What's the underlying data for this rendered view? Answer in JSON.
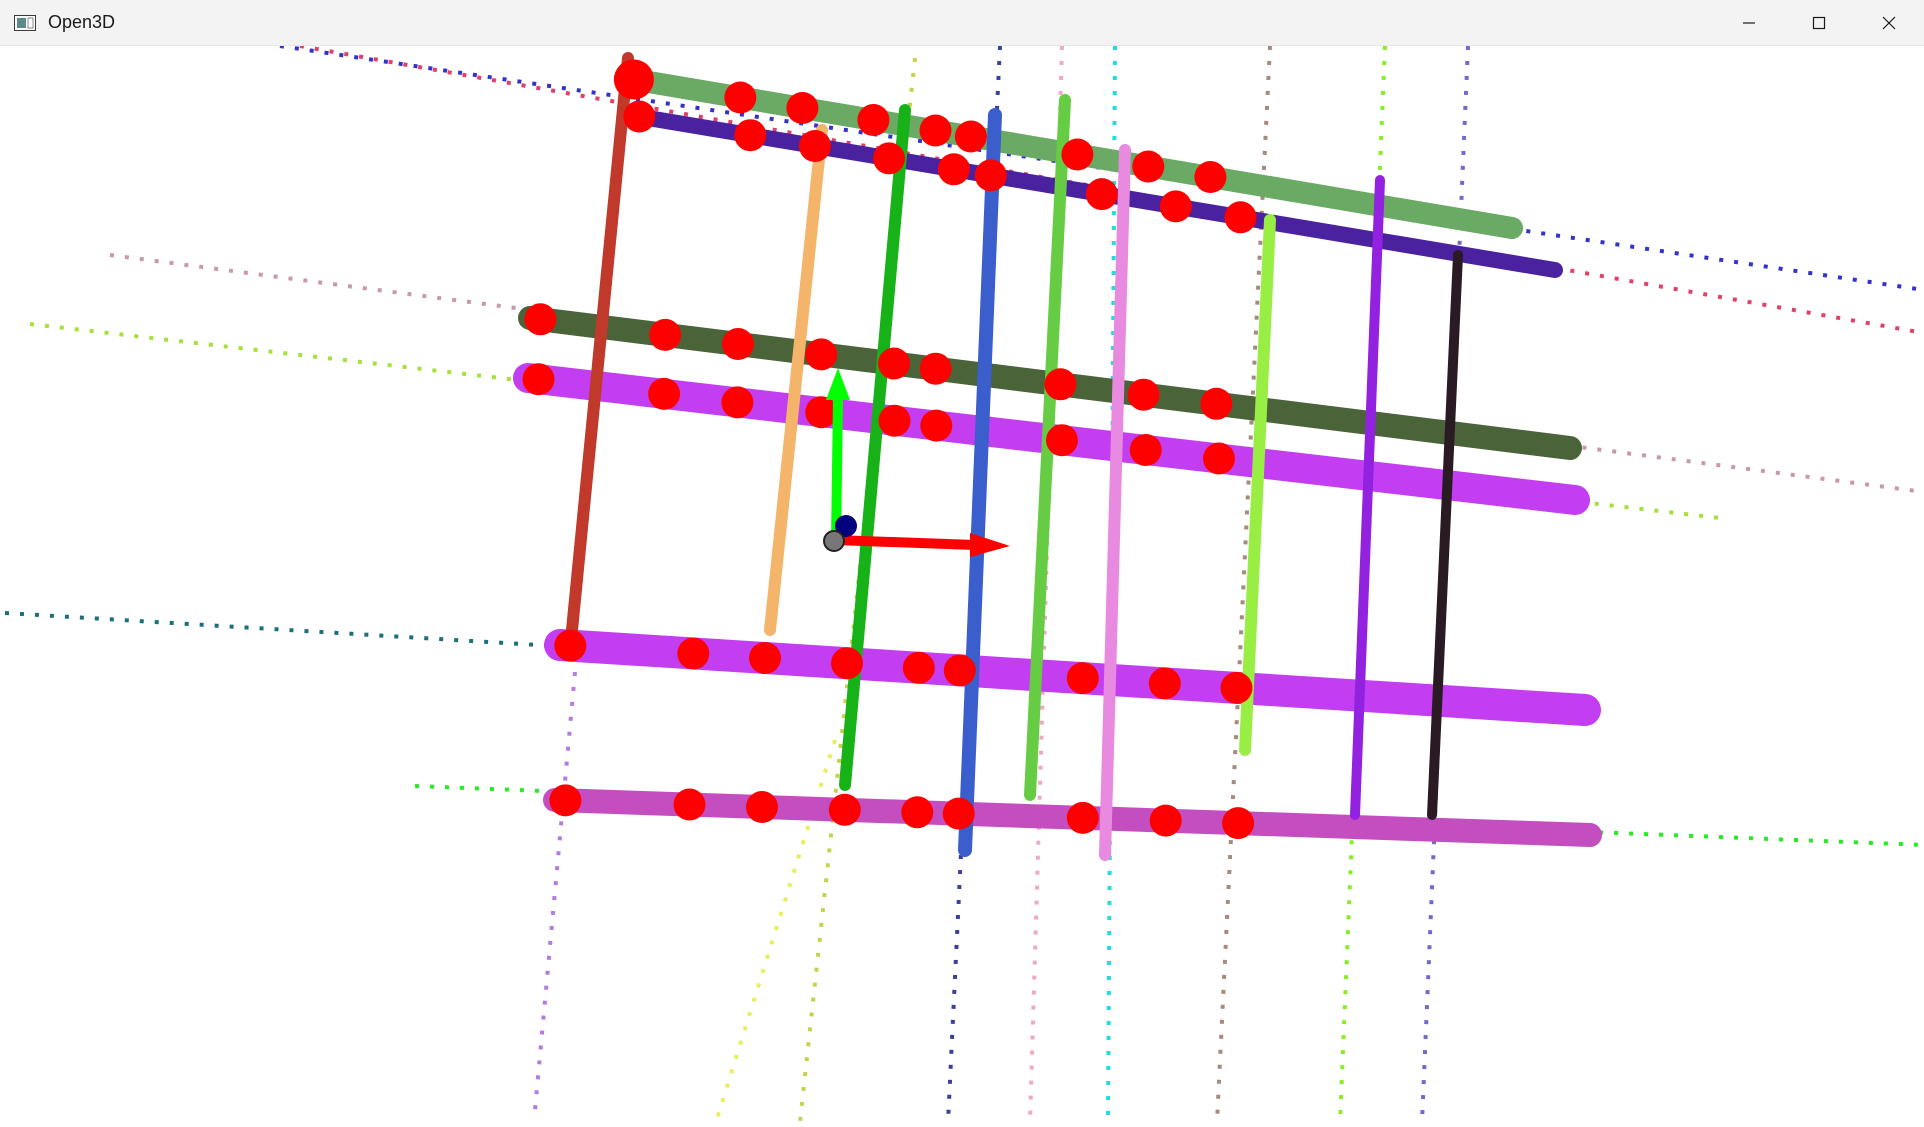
{
  "window": {
    "title": "Open3D",
    "controls": {
      "minimize": "minimize-icon",
      "maximize": "maximize-icon",
      "close": "close-icon"
    }
  },
  "colors": {
    "titlebar_bg": "#f3f3f3",
    "canvas_bg": "#ffffff",
    "keypoint": "#ff0000",
    "axis_x": "#ff0000",
    "axis_y": "#00ff00",
    "axis_z": "#00007f",
    "vertical_bars": [
      "#c0392b",
      "#f4b56a",
      "#17b217",
      "#3a5fcd",
      "#66cc44",
      "#e88ae0",
      "#99ee44",
      "#9222e0",
      "#2a1a24"
    ],
    "horizontal_bars": [
      "#6aaa64",
      "#4a22a0",
      "#4a6338",
      "#c23ef0",
      "#c23ef0",
      "#c44ec0"
    ],
    "guide_lines": [
      "#3333cc",
      "#e0406a",
      "#c89aa8",
      "#a6e03a",
      "#1c6f7a",
      "#22ee22",
      "#b37ae0",
      "#e6f05a",
      "#c7d24a",
      "#3a3f9c",
      "#f0a8c8",
      "#22dddd",
      "#a58a7e",
      "#88ee22",
      "#6f6acc"
    ]
  },
  "scene": {
    "type": "point-cloud-grid",
    "vertical_bar_count": 9,
    "horizontal_bar_count": 6,
    "keypoint_count": 54
  }
}
